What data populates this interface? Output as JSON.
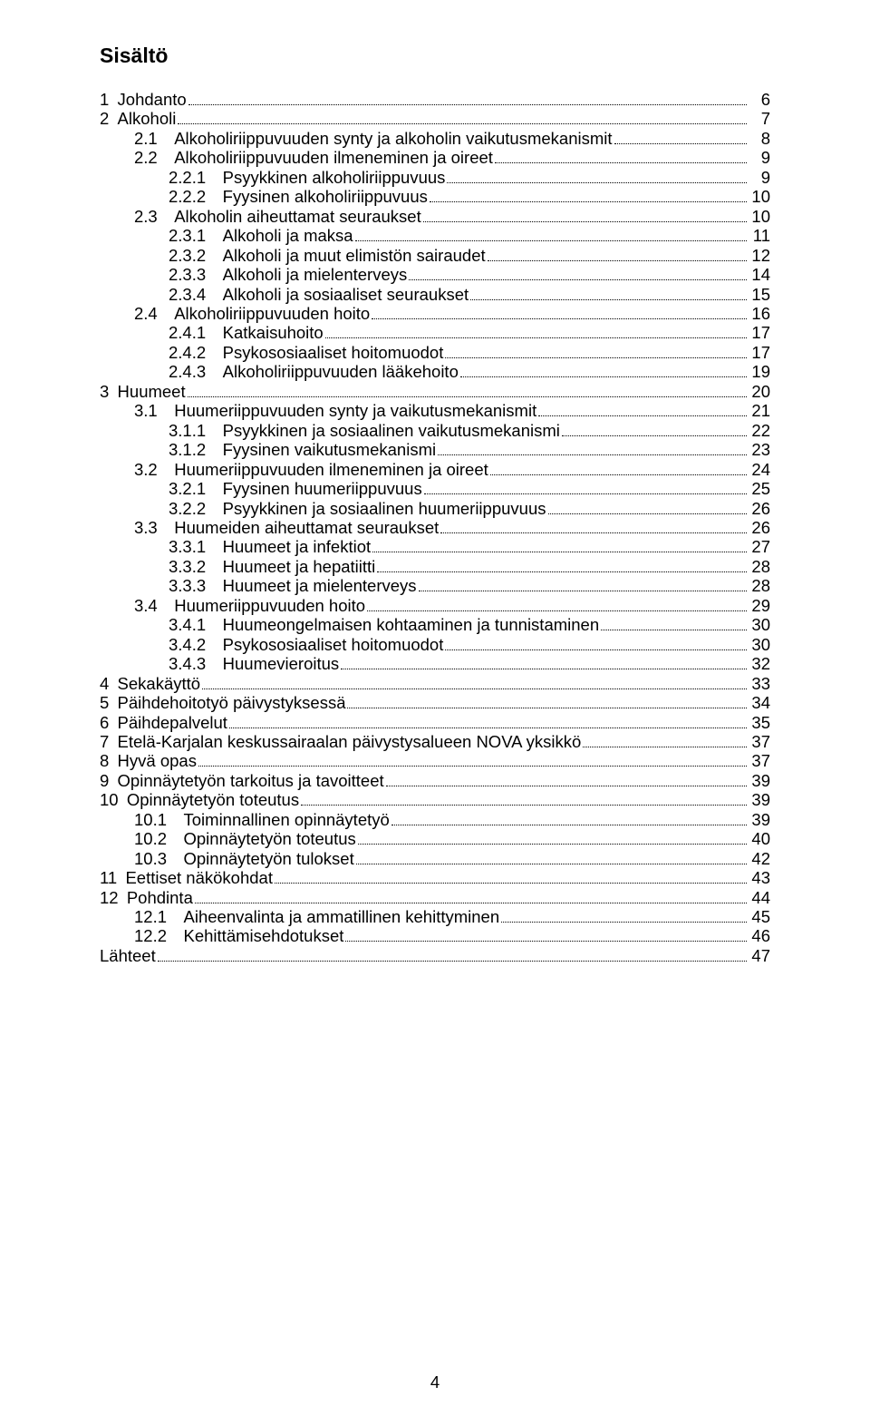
{
  "title": "Sisältö",
  "page_number": "4",
  "font_family": "Arial",
  "title_font_size_pt": 17,
  "body_font_size_pt": 14,
  "text_color": "#000000",
  "background_color": "#ffffff",
  "leader_dot_color": "#000000",
  "toc": [
    {
      "level": 0,
      "num": "1",
      "text": "Johdanto",
      "page": "6"
    },
    {
      "level": 0,
      "num": "2",
      "text": "Alkoholi",
      "page": "7"
    },
    {
      "level": 1,
      "num": "2.1",
      "text": "Alkoholiriippuvuuden synty ja alkoholin vaikutusmekanismit",
      "page": "8"
    },
    {
      "level": 1,
      "num": "2.2",
      "text": "Alkoholiriippuvuuden ilmeneminen ja oireet",
      "page": "9"
    },
    {
      "level": 2,
      "num": "2.2.1",
      "text": "Psyykkinen alkoholiriippuvuus",
      "page": "9"
    },
    {
      "level": 2,
      "num": "2.2.2",
      "text": "Fyysinen alkoholiriippuvuus",
      "page": "10"
    },
    {
      "level": 1,
      "num": "2.3",
      "text": "Alkoholin aiheuttamat seuraukset",
      "page": "10"
    },
    {
      "level": 2,
      "num": "2.3.1",
      "text": "Alkoholi ja maksa",
      "page": "11"
    },
    {
      "level": 2,
      "num": "2.3.2",
      "text": "Alkoholi ja muut elimistön sairaudet",
      "page": "12"
    },
    {
      "level": 2,
      "num": "2.3.3",
      "text": "Alkoholi ja mielenterveys",
      "page": "14"
    },
    {
      "level": 2,
      "num": "2.3.4",
      "text": "Alkoholi ja sosiaaliset seuraukset",
      "page": "15"
    },
    {
      "level": 1,
      "num": "2.4",
      "text": "Alkoholiriippuvuuden hoito",
      "page": "16"
    },
    {
      "level": 2,
      "num": "2.4.1",
      "text": "Katkaisuhoito",
      "page": "17"
    },
    {
      "level": 2,
      "num": "2.4.2",
      "text": "Psykososiaaliset hoitomuodot",
      "page": "17"
    },
    {
      "level": 2,
      "num": "2.4.3",
      "text": "Alkoholiriippuvuuden lääkehoito",
      "page": "19"
    },
    {
      "level": 0,
      "num": "3",
      "text": "Huumeet",
      "page": "20"
    },
    {
      "level": 1,
      "num": "3.1",
      "text": "Huumeriippuvuuden synty ja vaikutusmekanismit",
      "page": "21"
    },
    {
      "level": 2,
      "num": "3.1.1",
      "text": "Psyykkinen ja sosiaalinen vaikutusmekanismi",
      "page": "22"
    },
    {
      "level": 2,
      "num": "3.1.2",
      "text": "Fyysinen vaikutusmekanismi",
      "page": "23"
    },
    {
      "level": 1,
      "num": "3.2",
      "text": "Huumeriippuvuuden ilmeneminen ja oireet",
      "page": "24"
    },
    {
      "level": 2,
      "num": "3.2.1",
      "text": "Fyysinen huumeriippuvuus",
      "page": "25"
    },
    {
      "level": 2,
      "num": "3.2.2",
      "text": "Psyykkinen ja sosiaalinen huumeriippuvuus",
      "page": "26"
    },
    {
      "level": 1,
      "num": "3.3",
      "text": "Huumeiden aiheuttamat seuraukset",
      "page": "26"
    },
    {
      "level": 2,
      "num": "3.3.1",
      "text": "Huumeet ja infektiot",
      "page": "27"
    },
    {
      "level": 2,
      "num": "3.3.2",
      "text": "Huumeet ja hepatiitti",
      "page": "28"
    },
    {
      "level": 2,
      "num": "3.3.3",
      "text": "Huumeet ja mielenterveys",
      "page": "28"
    },
    {
      "level": 1,
      "num": "3.4",
      "text": "Huumeriippuvuuden hoito",
      "page": "29"
    },
    {
      "level": 2,
      "num": "3.4.1",
      "text": "Huumeongelmaisen kohtaaminen ja tunnistaminen",
      "page": "30"
    },
    {
      "level": 2,
      "num": "3.4.2",
      "text": "Psykososiaaliset hoitomuodot",
      "page": "30"
    },
    {
      "level": 2,
      "num": "3.4.3",
      "text": "Huumevieroitus",
      "page": "32"
    },
    {
      "level": 0,
      "num": "4",
      "text": "Sekakäyttö",
      "page": "33"
    },
    {
      "level": 0,
      "num": "5",
      "text": "Päihdehoitotyö päivystyksessä",
      "page": "34"
    },
    {
      "level": 0,
      "num": "6",
      "text": "Päihdepalvelut",
      "page": "35"
    },
    {
      "level": 0,
      "num": "7",
      "text": "Etelä-Karjalan keskussairaalan päivystysalueen NOVA yksikkö",
      "page": "37"
    },
    {
      "level": 0,
      "num": "8",
      "text": "Hyvä opas",
      "page": "37"
    },
    {
      "level": 0,
      "num": "9",
      "text": "Opinnäytetyön tarkoitus ja tavoitteet",
      "page": "39"
    },
    {
      "level": 0,
      "num": "10",
      "text": "Opinnäytetyön toteutus",
      "page": "39"
    },
    {
      "level": 1,
      "num": "10.1",
      "text": "Toiminnallinen opinnäytetyö",
      "page": "39"
    },
    {
      "level": 1,
      "num": "10.2",
      "text": "Opinnäytetyön toteutus",
      "page": "40"
    },
    {
      "level": 1,
      "num": "10.3",
      "text": "Opinnäytetyön tulokset",
      "page": "42"
    },
    {
      "level": 0,
      "num": "11",
      "text": "Eettiset näkökohdat",
      "page": "43"
    },
    {
      "level": 0,
      "num": "12",
      "text": "Pohdinta",
      "page": "44"
    },
    {
      "level": 1,
      "num": "12.1",
      "text": "Aiheenvalinta ja ammatillinen kehittyminen",
      "page": "45"
    },
    {
      "level": 1,
      "num": "12.2",
      "text": "Kehittämisehdotukset",
      "page": "46"
    },
    {
      "level": 0,
      "num": "",
      "text": "Lähteet",
      "page": "47"
    }
  ]
}
